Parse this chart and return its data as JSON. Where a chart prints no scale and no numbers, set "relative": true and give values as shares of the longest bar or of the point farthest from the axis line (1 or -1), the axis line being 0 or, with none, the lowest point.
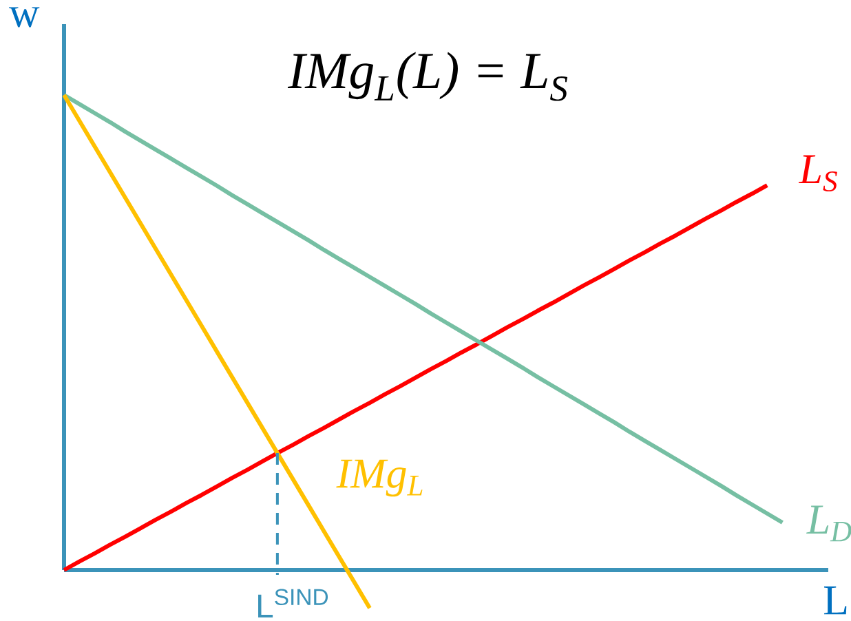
{
  "chart_data": {
    "type": "line",
    "title": "IMg$_{L}$(L) = L$_{S}$",
    "xlabel": "L",
    "ylabel": "w",
    "relative": true,
    "categories": [
      null,
      null,
      null,
      null,
      null,
      null,
      null,
      null,
      null,
      null,
      null,
      null,
      null,
      null,
      null,
      null,
      null,
      null,
      null,
      null,
      null,
      null,
      null,
      null,
      null,
      null,
      null,
      null,
      null,
      null,
      null,
      null,
      null,
      null,
      null,
      null,
      null,
      null,
      null,
      null,
      null,
      null,
      null,
      null,
      null,
      null,
      null,
      null,
      null,
      null,
      null
    ],
    "series": [
      {
        "name": "L$_{S}$",
        "color": "#ff0000",
        "values": [
          0,
          0.018,
          0.035,
          0.053,
          0.07,
          0.088,
          0.106,
          0.123,
          0.141,
          0.158,
          0.176,
          0.194,
          0.211,
          0.229,
          0.247,
          0.264,
          0.282,
          0.299,
          0.317,
          0.335,
          0.352,
          0.37,
          0.387,
          0.405,
          0.423,
          0.44,
          0.458,
          0.475,
          0.493,
          0.511,
          0.528,
          0.546,
          0.563,
          0.581,
          0.599,
          0.616,
          0.634,
          0.652,
          0.669,
          0.687,
          0.704,
          0.722,
          0.74,
          0.757,
          0.775,
          0.792,
          0.81,
          null,
          null,
          null,
          null
        ]
      },
      {
        "name": "L$_{D}$",
        "color": "#76bfa3",
        "values": [
          1,
          0.981,
          0.962,
          0.943,
          0.923,
          0.904,
          0.885,
          0.866,
          0.847,
          0.828,
          0.809,
          0.789,
          0.77,
          0.751,
          0.732,
          0.713,
          0.694,
          0.674,
          0.655,
          0.636,
          0.617,
          0.598,
          0.579,
          0.56,
          0.54,
          0.521,
          0.502,
          0.483,
          0.464,
          0.445,
          0.426,
          0.406,
          0.387,
          0.368,
          0.349,
          0.33,
          0.311,
          0.291,
          0.272,
          0.253,
          0.234,
          0.215,
          0.196,
          0.177,
          0.157,
          0.138,
          0.119,
          0.1,
          null,
          null,
          null
        ]
      },
      {
        "name": "IMg$_{L}$",
        "color": "#ffc000",
        "values": [
          1,
          0.946,
          0.892,
          0.838,
          0.784,
          0.73,
          0.676,
          0.622,
          0.568,
          0.514,
          0.46,
          0.406,
          0.352,
          0.298,
          0.244,
          0.19,
          0.136,
          0.082,
          0.028,
          -0.026,
          -0.08,
          null,
          null,
          null,
          null,
          null,
          null,
          null,
          null,
          null,
          null,
          null,
          null,
          null,
          null,
          null,
          null,
          null,
          null,
          null,
          null,
          null,
          null,
          null,
          null,
          null,
          null,
          null,
          null,
          null,
          null
        ]
      }
    ],
    "ref_lines": [
      {
        "axis": "y",
        "value": 0,
        "color": "#3b93b9"
      }
    ],
    "annotations": [
      "L$^{SIND}$"
    ]
  }
}
